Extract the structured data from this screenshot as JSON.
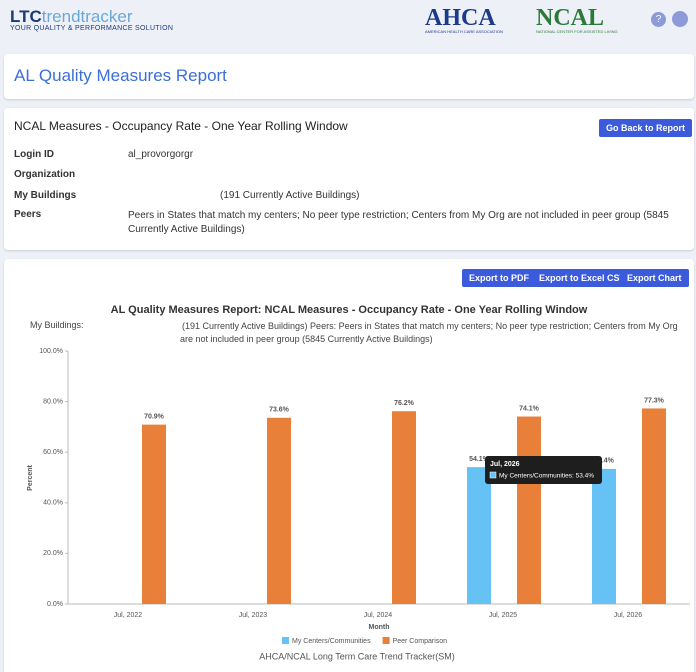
{
  "header": {
    "logo_mark": "LTC",
    "logo_name": "trendtracker",
    "tagline": "YOUR QUALITY & PERFORMANCE SOLUTION",
    "ahca": "AHCA",
    "ahca_sub": "AMERICAN HEALTH CARE ASSOCIATION",
    "ncal": "NCAL",
    "ncal_sub": "NATIONAL CENTER FOR ASSISTED LIVING",
    "help": "?"
  },
  "page_title": "AL Quality Measures Report",
  "info": {
    "title": "NCAL Measures - Occupancy Rate - One Year Rolling Window",
    "back_button": "Go Back to Report",
    "fields": [
      {
        "label": "Login ID",
        "value": "al_provorgorgr"
      },
      {
        "label": "Organization"
      },
      {
        "label": "My Buildings",
        "value": "(191 Currently Active Buildings)"
      },
      {
        "label": "Peers",
        "value": "Peers in States that match my centers; No peer type restriction; Centers from My Org are not included in peer group (5845 Currently Active Buildings)"
      }
    ]
  },
  "buttons": [
    "Export to PDF",
    "Export to Excel CSV",
    "Export Chart"
  ],
  "chart_data": {
    "type": "bar",
    "title": "AL Quality Measures Report: NCAL Measures - Occupancy Rate - One Year Rolling Window",
    "subtitle_label": "My Buildings:",
    "subtitle": "(191 Currently Active Buildings) Peers: Peers in States that match my centers; No peer type restriction; Centers from My Org are not included in peer group (5845 Currently Active Buildings)",
    "x_label": "Month",
    "y_label": "Percent",
    "categories": [
      "Jul, 2022",
      "Jul, 2023",
      "Jul, 2024",
      "Jul, 2025",
      "Jul, 2026"
    ],
    "series": [
      {
        "name": "My Centers/Communities",
        "color": "#66c2f5",
        "values": [
          null,
          null,
          null,
          54.1,
          53.4
        ],
        "value_labels": [
          null,
          null,
          null,
          "54.1%",
          "53.4%"
        ]
      },
      {
        "name": "Peer Comparison",
        "color": "#e8803a",
        "values": [
          70.9,
          73.6,
          76.2,
          74.1,
          77.3
        ],
        "value_labels": [
          "70.9%",
          "73.6%",
          "76.2%",
          "74.1%",
          "77.3%"
        ]
      }
    ],
    "ylim": [
      0,
      100
    ],
    "yticks": [
      {
        "value": 0,
        "label": "0.0%"
      },
      {
        "value": 20,
        "label": "20.0%"
      },
      {
        "value": 40,
        "label": "40.0%"
      },
      {
        "value": 60,
        "label": "60.0%"
      },
      {
        "value": 80,
        "label": "80.0%"
      },
      {
        "value": 100,
        "label": "100.0%"
      }
    ],
    "grid": false,
    "legend": "bottom",
    "tooltip": {
      "title": "Jul, 2026",
      "body": "My Centers/Communities: 53.4%"
    },
    "footer": "AHCA/NCAL Long Term Care Trend Tracker(SM)"
  }
}
